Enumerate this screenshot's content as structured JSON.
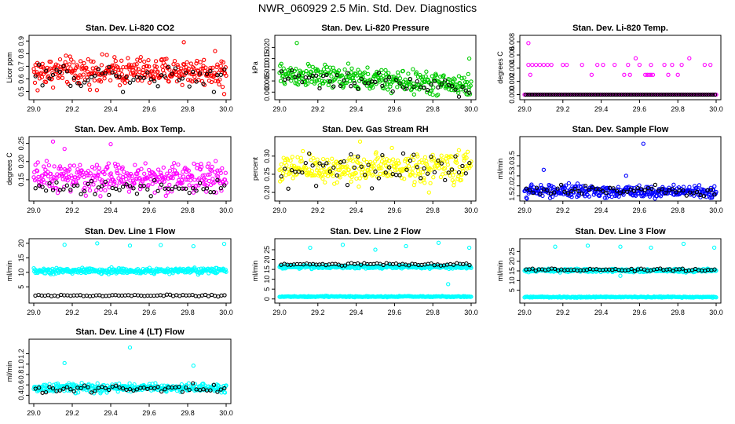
{
  "page": {
    "title": "NWR_060929  2.5 Min. Std. Dev. Diagnostics"
  },
  "chart_data": [
    {
      "type": "scatter",
      "title": "Stan. Dev. Li-820 CO2",
      "ylabel": "Licor ppm",
      "color": "#ff0000",
      "xlim": [
        29.0,
        30.0
      ],
      "ylim": [
        0.46,
        0.92
      ],
      "xticks": [
        "29.0",
        "29.2",
        "29.4",
        "29.6",
        "29.8",
        "30.0"
      ],
      "yticks": [
        {
          "value": 0.5,
          "label": "0.5"
        },
        {
          "value": 0.6,
          "label": "0.6"
        },
        {
          "value": 0.7,
          "label": "0.7"
        },
        {
          "value": 0.8,
          "label": "0.8"
        },
        {
          "value": 0.9,
          "label": "0.9"
        }
      ],
      "main": {
        "center": 0.66,
        "spread": 0.055,
        "trend": 0.0
      },
      "black": {
        "center": 0.63,
        "spread": 0.05,
        "count": 55
      },
      "outliers": [
        {
          "x": 29.02,
          "y": 0.51
        },
        {
          "x": 29.78,
          "y": 0.89
        },
        {
          "x": 29.99,
          "y": 0.48
        }
      ]
    },
    {
      "type": "scatter",
      "title": "Stan. Dev. Li-820 Pressure",
      "ylabel": "kPa",
      "color": "#00cc00",
      "xlim": [
        29.0,
        30.0
      ],
      "ylim": [
        -0.002,
        0.024
      ],
      "xticks": [
        "29.0",
        "29.2",
        "29.4",
        "29.6",
        "29.8",
        "30.0"
      ],
      "yticks": [
        {
          "value": 0.0,
          "label": "0.000"
        },
        {
          "value": 0.005,
          "label": "0.005"
        },
        {
          "value": 0.01,
          "label": "0.010"
        },
        {
          "value": 0.015,
          "label": "0.015"
        },
        {
          "value": 0.02,
          "label": "0.020"
        }
      ],
      "main": {
        "center": 0.008,
        "spread": 0.0025,
        "trend": -0.005
      },
      "black": {
        "center": 0.007,
        "spread": 0.002,
        "count": 55
      },
      "outliers": [
        {
          "x": 29.09,
          "y": 0.022
        },
        {
          "x": 29.99,
          "y": 0.015
        }
      ]
    },
    {
      "type": "scatter",
      "title": "Stan. Dev. Li-820 Temp.",
      "ylabel": "degrees C",
      "color": "#ff00ff",
      "xlim": [
        29.0,
        30.0
      ],
      "ylim": [
        -0.0003,
        0.0085
      ],
      "xticks": [
        "29.0",
        "29.2",
        "29.4",
        "29.6",
        "29.8",
        "30.0"
      ],
      "yticks": [
        {
          "value": 0.0,
          "label": "0.000"
        },
        {
          "value": 0.002,
          "label": "0.002"
        },
        {
          "value": 0.004,
          "label": "0.004"
        },
        {
          "value": 0.006,
          "label": "0.006"
        },
        {
          "value": 0.008,
          "label": "0.008"
        }
      ],
      "main": {
        "center": 0.0,
        "spread": 0.0,
        "trend": 0.0
      },
      "black": {
        "center": 0.0,
        "spread": 0.0,
        "count": 90
      },
      "levels": [
        {
          "y": 0.0045,
          "xs": [
            29.02,
            29.04,
            29.06,
            29.08,
            29.1,
            29.12,
            29.14,
            29.2,
            29.22,
            29.3,
            29.38,
            29.41,
            29.47,
            29.54,
            29.6,
            29.66,
            29.73,
            29.77,
            29.82,
            29.94,
            29.97
          ]
        },
        {
          "y": 0.003,
          "xs": [
            29.03,
            29.35,
            29.52,
            29.55,
            29.63,
            29.64,
            29.65,
            29.66,
            29.67,
            29.75,
            29.8
          ]
        }
      ],
      "outliers": [
        {
          "x": 29.02,
          "y": 0.0078
        },
        {
          "x": 29.86,
          "y": 0.0055
        },
        {
          "x": 29.58,
          "y": 0.0055
        }
      ]
    },
    {
      "type": "scatter",
      "title": "Stan. Dev. Amb. Box Temp.",
      "ylabel": "degrees C",
      "color": "#ff00ff",
      "xlim": [
        29.0,
        30.0
      ],
      "ylim": [
        0.1,
        0.26
      ],
      "xticks": [
        "29.0",
        "29.2",
        "29.4",
        "29.6",
        "29.8",
        "30.0"
      ],
      "yticks": [
        {
          "value": 0.15,
          "label": "0.15"
        },
        {
          "value": 0.2,
          "label": "0.20"
        },
        {
          "value": 0.25,
          "label": "0.25"
        }
      ],
      "main": {
        "center": 0.155,
        "spread": 0.02,
        "trend": 0.0
      },
      "black": {
        "center": 0.128,
        "spread": 0.01,
        "count": 55
      },
      "outliers": [
        {
          "x": 29.1,
          "y": 0.255
        },
        {
          "x": 29.4,
          "y": 0.248
        },
        {
          "x": 29.16,
          "y": 0.235
        }
      ]
    },
    {
      "type": "scatter",
      "title": "Stan. Dev. Gas Stream RH",
      "ylabel": "percent",
      "color": "#ffff00",
      "xlim": [
        29.0,
        30.0
      ],
      "ylim": [
        0.185,
        0.345
      ],
      "xticks": [
        "29.0",
        "29.2",
        "29.4",
        "29.6",
        "29.8",
        "30.0"
      ],
      "yticks": [
        {
          "value": 0.2,
          "label": "0.20"
        },
        {
          "value": 0.25,
          "label": "0.25"
        },
        {
          "value": 0.3,
          "label": "0.30"
        }
      ],
      "main": {
        "center": 0.262,
        "spread": 0.02,
        "trend": 0.01
      },
      "black": {
        "center": 0.26,
        "spread": 0.02,
        "count": 55
      },
      "outliers": [
        {
          "x": 29.42,
          "y": 0.34
        },
        {
          "x": 29.78,
          "y": 0.2
        }
      ]
    },
    {
      "type": "scatter",
      "title": "Stan. Dev. Sample Flow",
      "ylabel": "ml/min",
      "color": "#0000ff",
      "xlim": [
        29.0,
        30.0
      ],
      "ylim": [
        1.4,
        4.3
      ],
      "xticks": [
        "29.0",
        "29.2",
        "29.4",
        "29.6",
        "29.8",
        "30.0"
      ],
      "yticks": [
        {
          "value": 1.5,
          "label": "1.5"
        },
        {
          "value": 2.0,
          "label": "2.0"
        },
        {
          "value": 2.5,
          "label": "2.5"
        },
        {
          "value": 3.0,
          "label": "3.0"
        },
        {
          "value": 3.5,
          "label": "3.5"
        }
      ],
      "main": {
        "center": 1.75,
        "spread": 0.15,
        "trend": -0.05
      },
      "black": {
        "center": 1.8,
        "spread": 0.12,
        "count": 55
      },
      "outliers": [
        {
          "x": 29.1,
          "y": 2.8
        },
        {
          "x": 29.62,
          "y": 4.1
        },
        {
          "x": 29.53,
          "y": 2.5
        }
      ]
    },
    {
      "type": "scatter",
      "title": "Stan. Dev. Line 1 Flow",
      "ylabel": "ml/min",
      "color": "#00ffff",
      "xlim": [
        29.0,
        30.0
      ],
      "ylim": [
        0.5,
        20.5
      ],
      "xticks": [
        "29.0",
        "29.2",
        "29.4",
        "29.6",
        "29.8",
        "30.0"
      ],
      "yticks": [
        {
          "value": 5,
          "label": "5"
        },
        {
          "value": 10,
          "label": "10"
        },
        {
          "value": 15,
          "label": "15"
        },
        {
          "value": 20,
          "label": "20"
        }
      ],
      "main": {
        "center": 10.5,
        "spread": 0.5,
        "trend": 0.0
      },
      "black": {
        "center": 2.0,
        "spread": 0.15,
        "count": 60
      },
      "outliers": [
        {
          "x": 29.16,
          "y": 19.5
        },
        {
          "x": 29.33,
          "y": 20.0
        },
        {
          "x": 29.5,
          "y": 19.2
        },
        {
          "x": 29.66,
          "y": 19.4
        },
        {
          "x": 29.83,
          "y": 19.0
        },
        {
          "x": 29.99,
          "y": 19.8
        }
      ]
    },
    {
      "type": "scatter",
      "title": "Stan. Dev. Line 2 Flow",
      "ylabel": "ml/min",
      "color": "#00ffff",
      "xlim": [
        29.0,
        30.0
      ],
      "ylim": [
        -0.5,
        29
      ],
      "xticks": [
        "29.0",
        "29.2",
        "29.4",
        "29.6",
        "29.8",
        "30.0"
      ],
      "yticks": [
        {
          "value": 0,
          "label": "0"
        },
        {
          "value": 5,
          "label": "5"
        },
        {
          "value": 10,
          "label": "10"
        },
        {
          "value": 15,
          "label": "15"
        },
        {
          "value": 20,
          "label": "20"
        },
        {
          "value": 25,
          "label": "25"
        }
      ],
      "main": {
        "center": 16.3,
        "spread": 0.4,
        "trend": 0.0
      },
      "black": {
        "center": 17.6,
        "spread": 0.3,
        "count": 60
      },
      "baseline": {
        "y": 1.2,
        "spread": 0.15
      },
      "outliers": [
        {
          "x": 29.16,
          "y": 26.0
        },
        {
          "x": 29.33,
          "y": 27.5
        },
        {
          "x": 29.5,
          "y": 25.0
        },
        {
          "x": 29.66,
          "y": 26.8
        },
        {
          "x": 29.83,
          "y": 28.5
        },
        {
          "x": 29.99,
          "y": 26.0
        },
        {
          "x": 29.88,
          "y": 7.5
        }
      ]
    },
    {
      "type": "scatter",
      "title": "Stan. Dev. Line 3 Flow",
      "ylabel": "ml/min",
      "color": "#00ffff",
      "xlim": [
        29.0,
        30.0
      ],
      "ylim": [
        0,
        30
      ],
      "xticks": [
        "29.0",
        "29.2",
        "29.4",
        "29.6",
        "29.8",
        "30.0"
      ],
      "yticks": [
        {
          "value": 5,
          "label": "5"
        },
        {
          "value": 10,
          "label": "10"
        },
        {
          "value": 15,
          "label": "15"
        },
        {
          "value": 20,
          "label": "20"
        },
        {
          "value": 25,
          "label": "25"
        }
      ],
      "main": {
        "center": 15.2,
        "spread": 0.4,
        "trend": 0.0
      },
      "black": {
        "center": 15.6,
        "spread": 0.3,
        "count": 60
      },
      "baseline": {
        "y": 1.5,
        "spread": 0.15
      },
      "outliers": [
        {
          "x": 29.16,
          "y": 27.5
        },
        {
          "x": 29.33,
          "y": 28.0
        },
        {
          "x": 29.5,
          "y": 27.5
        },
        {
          "x": 29.66,
          "y": 27.0
        },
        {
          "x": 29.83,
          "y": 29.0
        },
        {
          "x": 29.99,
          "y": 27.0
        },
        {
          "x": 29.5,
          "y": 12.5
        }
      ]
    },
    {
      "type": "scatter",
      "title": "Stan. Dev. Line 4 (LT) Flow",
      "ylabel": "ml/min",
      "color": "#00ffff",
      "xlim": [
        29.0,
        30.0
      ],
      "ylim": [
        0.3,
        1.42
      ],
      "xticks": [
        "29.0",
        "29.2",
        "29.4",
        "29.6",
        "29.8",
        "30.0"
      ],
      "yticks": [
        {
          "value": 0.4,
          "label": "0.4"
        },
        {
          "value": 0.6,
          "label": "0.6"
        },
        {
          "value": 0.8,
          "label": "0.8"
        },
        {
          "value": 1.0,
          "label": "1.0"
        },
        {
          "value": 1.2,
          "label": "1.2"
        }
      ],
      "main": {
        "center": 0.54,
        "spread": 0.04,
        "trend": 0.0
      },
      "black": {
        "center": 0.53,
        "spread": 0.04,
        "count": 55
      },
      "outliers": [
        {
          "x": 29.16,
          "y": 1.02
        },
        {
          "x": 29.5,
          "y": 1.32
        },
        {
          "x": 29.83,
          "y": 0.97
        }
      ]
    }
  ]
}
